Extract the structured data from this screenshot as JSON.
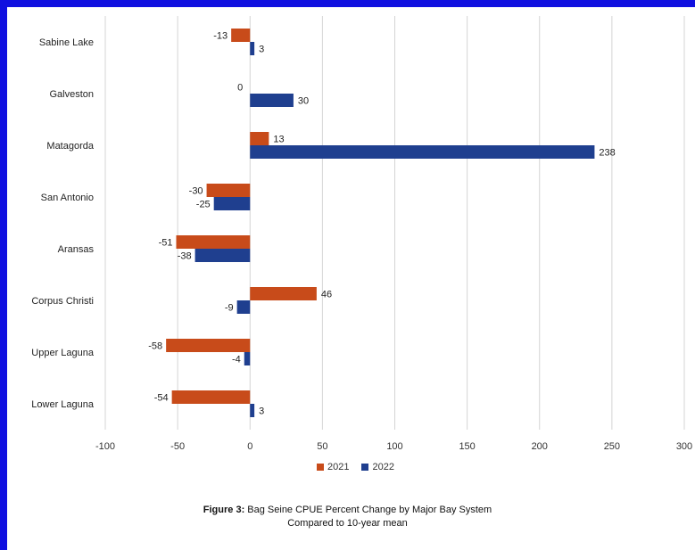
{
  "chart_data": {
    "type": "bar",
    "orientation": "horizontal",
    "categories": [
      "Sabine Lake",
      "Galveston",
      "Matagorda",
      "San Antonio",
      "Aransas",
      "Corpus Christi",
      "Upper Laguna",
      "Lower Laguna"
    ],
    "series": [
      {
        "name": "2021",
        "values": [
          -13,
          0,
          13,
          -30,
          -51,
          46,
          -58,
          -54
        ],
        "color": "#c84b1a"
      },
      {
        "name": "2022",
        "values": [
          3,
          30,
          238,
          -25,
          -38,
          -9,
          -4,
          3
        ],
        "color": "#1f3f8f"
      }
    ],
    "xlim": [
      -100,
      300
    ],
    "xticks": [
      "-100",
      "-50",
      "0",
      "50",
      "100",
      "150",
      "200",
      "250",
      "300"
    ],
    "grid": true,
    "legend_position": "bottom"
  },
  "caption": {
    "bold": "Figure 3:",
    "line1": " Bag Seine CPUE Percent Change by Major Bay System",
    "line2": "Compared to 10-year mean"
  }
}
